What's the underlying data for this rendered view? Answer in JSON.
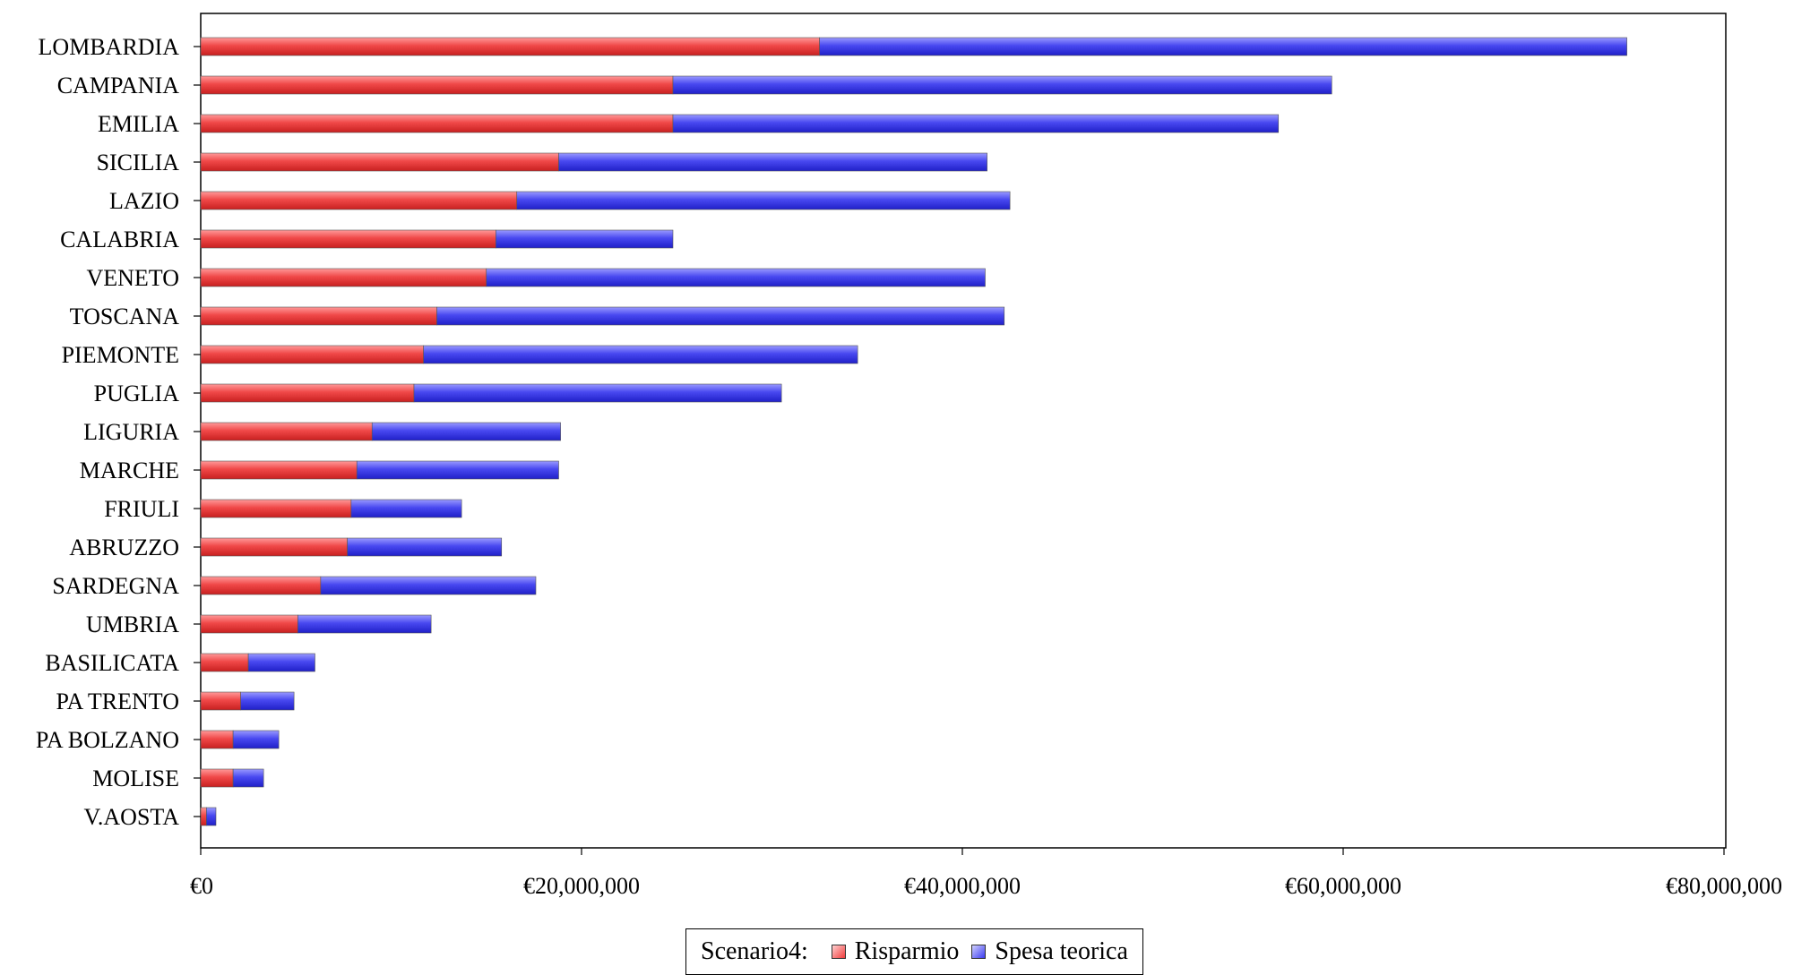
{
  "chart_data": {
    "type": "bar",
    "orientation": "horizontal",
    "stacked": true,
    "title": "",
    "xlabel": "",
    "ylabel": "",
    "categories": [
      "LOMBARDIA",
      "CAMPANIA",
      "EMILIA",
      "SICILIA",
      "LAZIO",
      "CALABRIA",
      "VENETO",
      "TOSCANA",
      "PIEMONTE",
      "PUGLIA",
      "LIGURIA",
      "MARCHE",
      "FRIULI",
      "ABRUZZO",
      "SARDEGNA",
      "UMBRIA",
      "BASILICATA",
      "PA TRENTO",
      "PA BOLZANO",
      "MOLISE",
      "V.AOSTA"
    ],
    "series": [
      {
        "name": "Risparmio",
        "color": "#e83a3a",
        "values": [
          32500000,
          24800000,
          24800000,
          18800000,
          16600000,
          15500000,
          15000000,
          12400000,
          11700000,
          11200000,
          9000000,
          8200000,
          7900000,
          7700000,
          6300000,
          5100000,
          2500000,
          2100000,
          1700000,
          1700000,
          300000
        ]
      },
      {
        "name": "Spesa teorica",
        "color": "#3a3ae8",
        "values": [
          42400000,
          34600000,
          31800000,
          22500000,
          25900000,
          9300000,
          26200000,
          29800000,
          22800000,
          19300000,
          9900000,
          10600000,
          5800000,
          8100000,
          11300000,
          7000000,
          3500000,
          2800000,
          2400000,
          1600000,
          500000
        ]
      }
    ],
    "xlim": [
      0,
      80000000
    ],
    "xticks": [
      0,
      20000000,
      40000000,
      60000000,
      80000000
    ],
    "xtick_labels": [
      "€0",
      "€20,000,000",
      "€40,000,000",
      "€60,000,000",
      "€80,000,000"
    ],
    "grid": false,
    "legend": {
      "placement": "bottom",
      "title": "Scenario4:"
    }
  }
}
